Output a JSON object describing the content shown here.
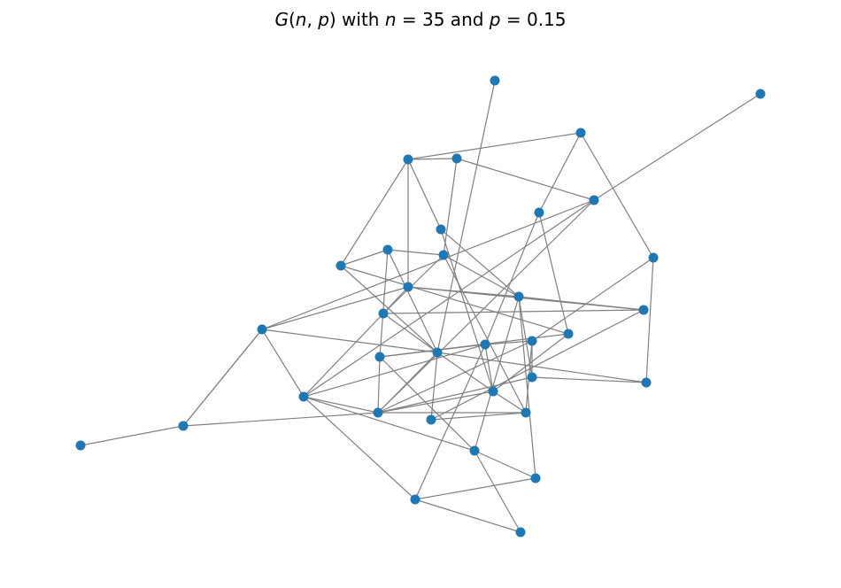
{
  "title": {
    "prefix": "G(",
    "var_n": "n",
    "comma": ", ",
    "var_p": "p",
    "middle": ") with ",
    "var_n2": "n",
    "eq1": " = 35 and ",
    "var_p2": "p",
    "eq2": " = 0.15"
  },
  "graph": {
    "n": 35,
    "p": 0.15,
    "node_color": "#1f77b4",
    "edge_color": "#808080"
  }
}
